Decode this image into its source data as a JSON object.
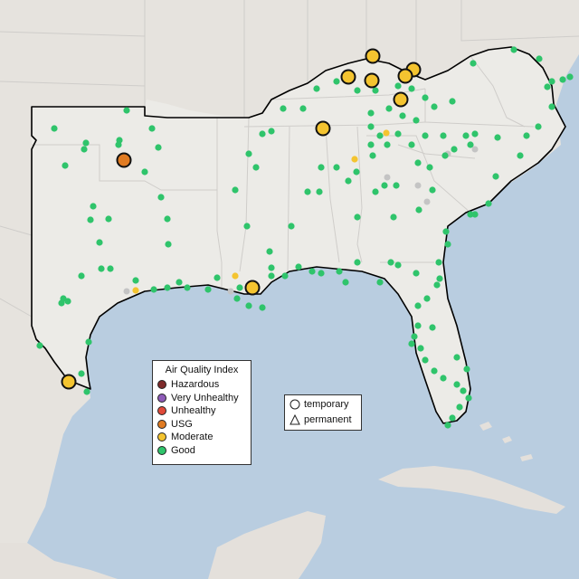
{
  "colors": {
    "ocean": "#b9cde0",
    "land": "#ecebe7",
    "land_outside": "#e6e3de",
    "border": "#cfcdca",
    "outline": "#000000"
  },
  "aqi_legend": {
    "title": "Air Quality Index",
    "items": [
      {
        "label": "Hazardous",
        "color": "#7e2b2b"
      },
      {
        "label": "Very Unhealthy",
        "color": "#8e5bb8"
      },
      {
        "label": "Unhealthy",
        "color": "#e04a3a"
      },
      {
        "label": "USG",
        "color": "#e07b22"
      },
      {
        "label": "Moderate",
        "color": "#f4c430"
      },
      {
        "label": "Good",
        "color": "#2fc46b"
      }
    ]
  },
  "shape_legend": {
    "items": [
      {
        "label": "temporary",
        "shape": "circle"
      },
      {
        "label": "permanent",
        "shape": "triangle"
      }
    ]
  },
  "sensor_colors": {
    "good": "#2fc46b",
    "moderate": "#f4c430",
    "usg": "#e07b22",
    "nodata": "#c4c4c4"
  }
}
